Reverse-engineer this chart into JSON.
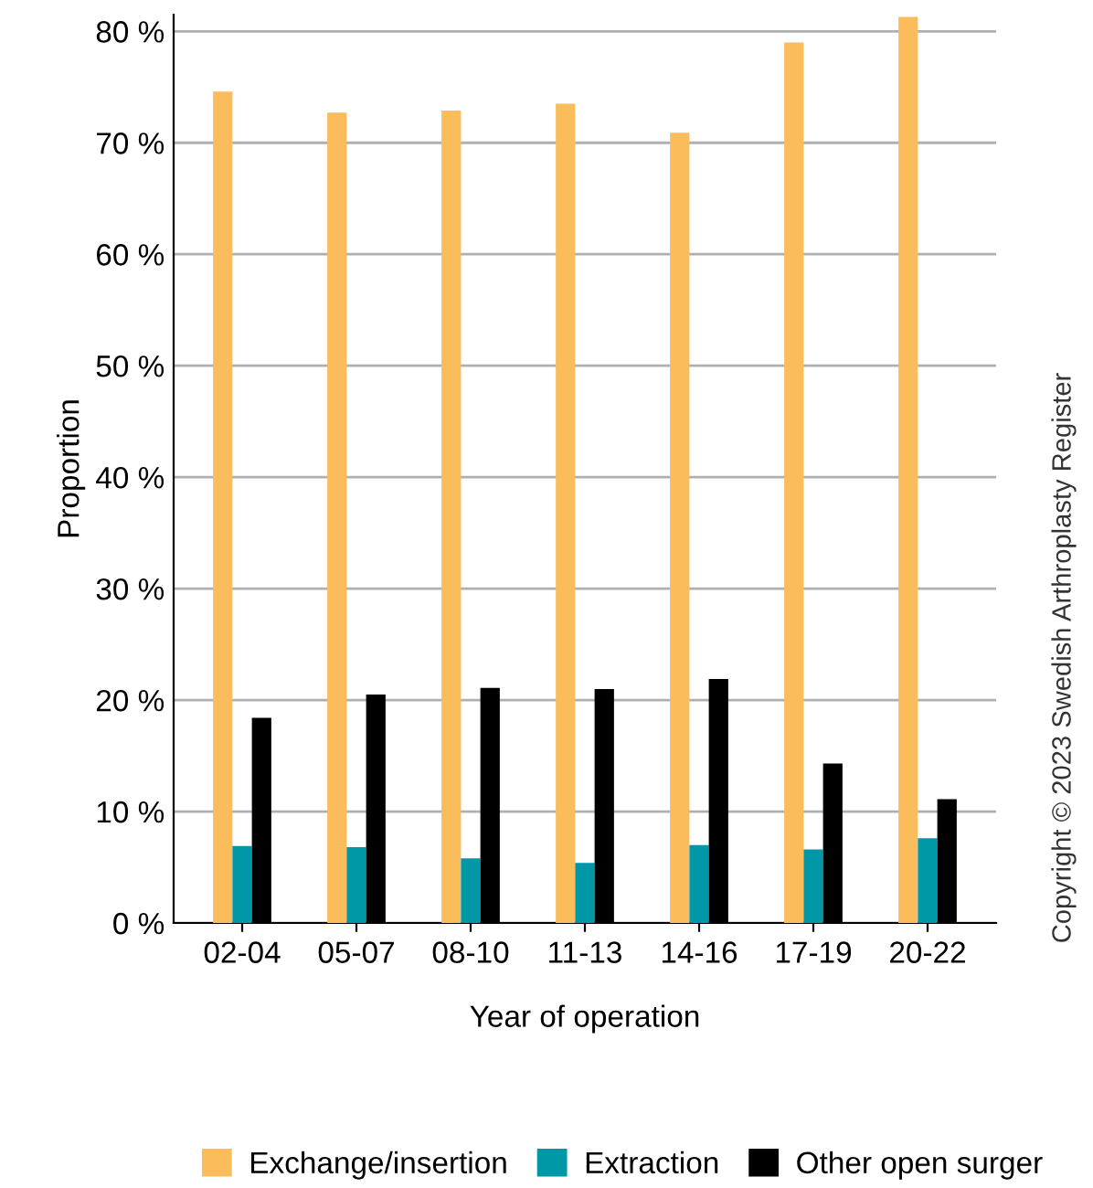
{
  "chart_data": {
    "type": "bar",
    "xlabel": "Year of operation",
    "ylabel": "Proportion",
    "categories": [
      "02-04",
      "05-07",
      "08-10",
      "11-13",
      "14-16",
      "17-19",
      "20-22"
    ],
    "series": [
      {
        "name": "Exchange/insertion",
        "color": "#fbbc5c",
        "values": [
          74.6,
          72.7,
          72.9,
          73.5,
          70.9,
          79.0,
          81.3
        ]
      },
      {
        "name": "Extraction",
        "color": "#0097a7",
        "values": [
          6.9,
          6.8,
          5.8,
          5.4,
          7.0,
          6.6,
          7.6
        ]
      },
      {
        "name": "Other open surger",
        "color": "#000000",
        "values": [
          18.4,
          20.5,
          21.1,
          21.0,
          21.9,
          14.3,
          11.1
        ]
      }
    ],
    "ylim": [
      0,
      81.5
    ],
    "yticks": [
      {
        "value": 0,
        "label": "0 %"
      },
      {
        "value": 10,
        "label": "10 %"
      },
      {
        "value": 20,
        "label": "20 %"
      },
      {
        "value": 30,
        "label": "30 %"
      },
      {
        "value": 40,
        "label": "40 %"
      },
      {
        "value": 50,
        "label": "50 %"
      },
      {
        "value": 60,
        "label": "60 %"
      },
      {
        "value": 70,
        "label": "70 %"
      },
      {
        "value": 80,
        "label": "80 %"
      }
    ],
    "grid": "y",
    "legend": "bottom",
    "annotations": [
      "Copyright © 2023 Swedish Arthroplasty Register"
    ]
  }
}
